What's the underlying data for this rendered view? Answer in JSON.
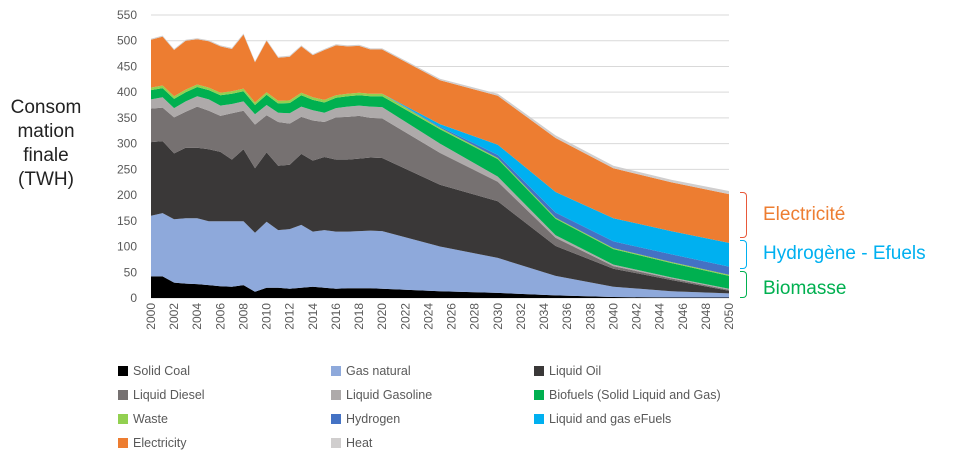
{
  "chart_data": {
    "type": "area",
    "stacked": true,
    "ylabel_lines": [
      "Consom",
      "mation",
      "finale",
      "(TWH)"
    ],
    "ylim": [
      0,
      550
    ],
    "yticks": [
      0,
      50,
      100,
      150,
      200,
      250,
      300,
      350,
      400,
      450,
      500,
      550
    ],
    "x": [
      2000,
      2001,
      2002,
      2003,
      2004,
      2005,
      2006,
      2007,
      2008,
      2009,
      2010,
      2011,
      2012,
      2013,
      2014,
      2015,
      2016,
      2017,
      2018,
      2019,
      2020,
      2025,
      2030,
      2035,
      2040,
      2045,
      2050
    ],
    "xticks": [
      2000,
      2002,
      2004,
      2006,
      2008,
      2010,
      2012,
      2014,
      2016,
      2018,
      2020,
      2022,
      2024,
      2026,
      2028,
      2030,
      2032,
      2034,
      2036,
      2038,
      2040,
      2042,
      2044,
      2046,
      2048,
      2050
    ],
    "grid": true,
    "legend_position": "bottom",
    "series": [
      {
        "name": "Solid Coal",
        "color": "#000000",
        "values": [
          42,
          42,
          30,
          28,
          27,
          25,
          23,
          22,
          25,
          12,
          20,
          20,
          18,
          20,
          22,
          20,
          18,
          19,
          19,
          19,
          18,
          13,
          10,
          5,
          2,
          1,
          1
        ]
      },
      {
        "name": "Gas natural",
        "color": "#8EA9DB",
        "values": [
          118,
          123,
          123,
          127,
          128,
          124,
          126,
          127,
          124,
          115,
          128,
          112,
          116,
          122,
          107,
          112,
          111,
          110,
          111,
          112,
          112,
          87,
          68,
          38,
          20,
          12,
          8
        ]
      },
      {
        "name": "Liquid Oil",
        "color": "#3A3838",
        "values": [
          143,
          140,
          128,
          137,
          137,
          140,
          135,
          120,
          140,
          125,
          135,
          125,
          125,
          138,
          138,
          142,
          140,
          140,
          141,
          142,
          142,
          120,
          110,
          58,
          35,
          22,
          5
        ]
      },
      {
        "name": "Liquid Diesel",
        "color": "#767171",
        "values": [
          65,
          65,
          70,
          70,
          80,
          75,
          70,
          90,
          75,
          85,
          72,
          85,
          80,
          72,
          78,
          68,
          82,
          83,
          83,
          77,
          77,
          62,
          38,
          16,
          5,
          3,
          2
        ]
      },
      {
        "name": "Liquid Gasoline",
        "color": "#AEAAAA",
        "values": [
          18,
          20,
          18,
          20,
          20,
          22,
          20,
          18,
          18,
          20,
          20,
          18,
          20,
          20,
          20,
          18,
          18,
          20,
          20,
          22,
          22,
          18,
          10,
          5,
          3,
          2,
          2
        ]
      },
      {
        "name": "Biofuels (Solid Liquid and Gas)",
        "color": "#00B050",
        "values": [
          18,
          18,
          18,
          18,
          18,
          18,
          20,
          20,
          20,
          18,
          20,
          18,
          20,
          22,
          20,
          20,
          20,
          20,
          20,
          20,
          21,
          28,
          34,
          32,
          30,
          28,
          25
        ]
      },
      {
        "name": "Waste",
        "color": "#92D050",
        "values": [
          5,
          5,
          5,
          5,
          5,
          5,
          5,
          5,
          5,
          5,
          5,
          5,
          5,
          5,
          5,
          5,
          5,
          5,
          5,
          5,
          5,
          3,
          2,
          2,
          2,
          2,
          2
        ]
      },
      {
        "name": "Hydrogen",
        "color": "#4472C4",
        "values": [
          0,
          0,
          0,
          0,
          0,
          0,
          0,
          0,
          0,
          0,
          0,
          0,
          0,
          0,
          0,
          0,
          0,
          0,
          0,
          0,
          0,
          2,
          6,
          10,
          13,
          15,
          16
        ]
      },
      {
        "name": "Liquid and gas eFuels",
        "color": "#00B0F0",
        "values": [
          0,
          0,
          0,
          0,
          0,
          0,
          0,
          0,
          0,
          0,
          0,
          0,
          0,
          0,
          0,
          0,
          0,
          0,
          0,
          0,
          0,
          5,
          20,
          40,
          45,
          45,
          46
        ]
      },
      {
        "name": "Electricity",
        "color": "#ED7D31",
        "values": [
          93,
          95,
          90,
          95,
          88,
          90,
          90,
          82,
          105,
          78,
          100,
          84,
          85,
          90,
          82,
          97,
          97,
          92,
          91,
          86,
          86,
          85,
          95,
          105,
          97,
          95,
          95
        ]
      },
      {
        "name": "Heat",
        "color": "#D0CECE",
        "values": [
          2,
          2,
          2,
          2,
          2,
          2,
          2,
          2,
          2,
          2,
          2,
          2,
          2,
          2,
          2,
          2,
          2,
          2,
          2,
          2,
          2,
          3,
          4,
          5,
          5,
          5,
          6
        ]
      }
    ]
  },
  "annotations": [
    {
      "label": "Electricité",
      "color": "#ED7D31"
    },
    {
      "label": "Hydrogène - Efuels",
      "color": "#00B0F0"
    },
    {
      "label": "Biomasse",
      "color": "#00B050"
    }
  ]
}
